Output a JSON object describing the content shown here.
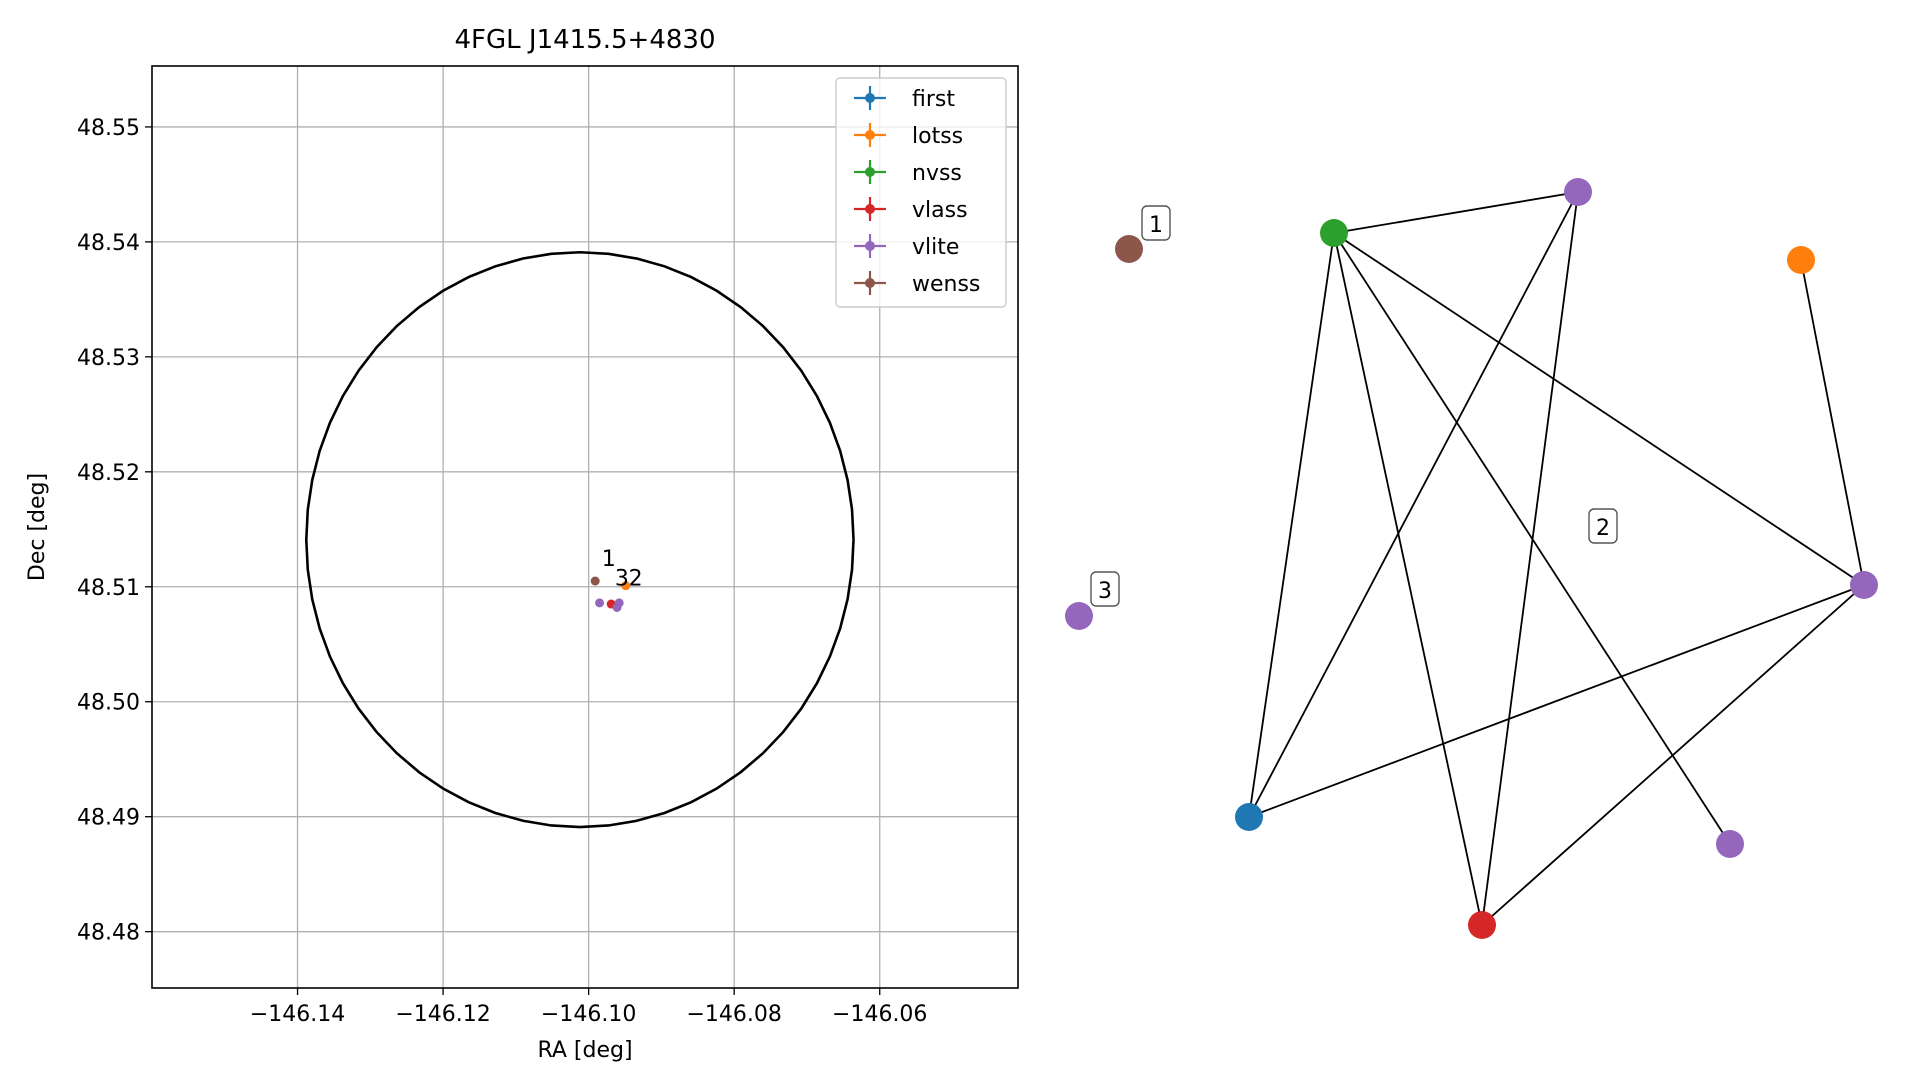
{
  "colors": {
    "first": "#1f77b4",
    "lotss": "#ff7f0e",
    "nvss": "#2ca02c",
    "vlass": "#d62728",
    "vlite": "#9467bd",
    "wenss": "#8c564b",
    "grid": "#b0b0b0",
    "axes": "#000000"
  },
  "chart_data": [
    {
      "type": "scatter",
      "title": "4FGL J1415.5+4830",
      "xlabel": "RA [deg]",
      "ylabel": "Dec [deg]",
      "xlim": [
        -146.16,
        -146.041
      ],
      "ylim": [
        48.4751,
        48.5553
      ],
      "grid": true,
      "legend_position": "upper right",
      "xticks": [
        -146.14,
        -146.12,
        -146.1,
        -146.08,
        -146.06
      ],
      "xtick_labels": [
        "−146.14",
        "−146.12",
        "−146.10",
        "−146.08",
        "−146.06"
      ],
      "yticks": [
        48.48,
        48.49,
        48.5,
        48.51,
        48.52,
        48.53,
        48.54,
        48.55
      ],
      "ytick_labels": [
        "48.48",
        "48.49",
        "48.50",
        "48.51",
        "48.52",
        "48.53",
        "48.54",
        "48.55"
      ],
      "circle": {
        "center": [
          -146.1012,
          48.5141
        ],
        "radius_deg": 0.0376,
        "radius_dec": 0.025
      },
      "series": [
        {
          "name": "first",
          "color_key": "first",
          "points": []
        },
        {
          "name": "lotss",
          "color_key": "lotss",
          "points": [
            [
              -146.0949,
              48.5101
            ]
          ]
        },
        {
          "name": "nvss",
          "color_key": "nvss",
          "points": []
        },
        {
          "name": "vlass",
          "color_key": "vlass",
          "points": [
            [
              -146.0969,
              48.5085
            ]
          ]
        },
        {
          "name": "vlite",
          "color_key": "vlite",
          "points": [
            [
              -146.0985,
              48.5086
            ],
            [
              -146.0958,
              48.5086
            ],
            [
              -146.0961,
              48.5082
            ]
          ]
        },
        {
          "name": "wenss",
          "color_key": "wenss",
          "points": [
            [
              -146.0991,
              48.5105
            ]
          ]
        }
      ],
      "annotations": [
        {
          "text": "1",
          "x": -146.0982,
          "y": 48.5118
        },
        {
          "text": "3",
          "x": -146.0964,
          "y": 48.5101
        },
        {
          "text": "2",
          "x": -146.0945,
          "y": 48.5101
        }
      ]
    },
    {
      "type": "network",
      "nodes": [
        {
          "id": "n_wenss",
          "color_key": "wenss",
          "label": "1"
        },
        {
          "id": "n_vlite_lone",
          "color_key": "vlite",
          "label": "3"
        },
        {
          "id": "n_nvss",
          "color_key": "nvss"
        },
        {
          "id": "n_vlite_top",
          "color_key": "vlite"
        },
        {
          "id": "n_lotss",
          "color_key": "lotss"
        },
        {
          "id": "n_vlite_right",
          "color_key": "vlite"
        },
        {
          "id": "n_first",
          "color_key": "first"
        },
        {
          "id": "n_vlass",
          "color_key": "vlass"
        },
        {
          "id": "n_vlite_bottom",
          "color_key": "vlite"
        }
      ],
      "edges": [
        [
          "n_nvss",
          "n_vlite_top"
        ],
        [
          "n_nvss",
          "n_first"
        ],
        [
          "n_nvss",
          "n_vlass"
        ],
        [
          "n_nvss",
          "n_vlite_right"
        ],
        [
          "n_nvss",
          "n_vlite_bottom"
        ],
        [
          "n_vlite_top",
          "n_first"
        ],
        [
          "n_vlite_top",
          "n_vlass"
        ],
        [
          "n_lotss",
          "n_vlite_right"
        ],
        [
          "n_vlite_right",
          "n_first"
        ],
        [
          "n_vlite_right",
          "n_vlass"
        ]
      ],
      "component_labels": [
        "1",
        "2",
        "3"
      ]
    }
  ]
}
